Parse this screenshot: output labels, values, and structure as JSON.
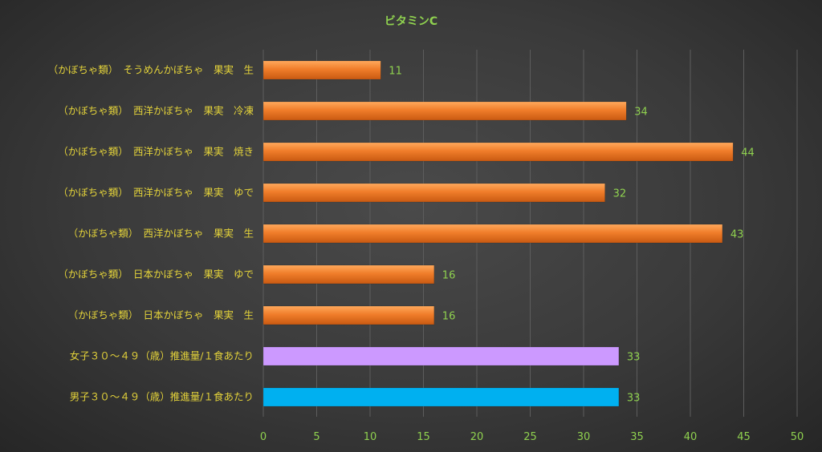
{
  "chart_data": {
    "type": "bar",
    "orientation": "horizontal",
    "title": "ビタミンC",
    "xlim": [
      0,
      50
    ],
    "xticks": [
      0,
      5,
      10,
      15,
      20,
      25,
      30,
      35,
      40,
      45,
      50
    ],
    "grid": true,
    "categories": [
      "（かぼちゃ類）　そうめんかぼちゃ　果実　生",
      "（かぼちゃ類）　西洋かぼちゃ　果実　冷凍",
      "（かぼちゃ類）　西洋かぼちゃ　果実　焼き",
      "（かぼちゃ類）　西洋かぼちゃ　果実　ゆで",
      "（かぼちゃ類）　西洋かぼちゃ　果実　生",
      "（かぼちゃ類）　日本かぼちゃ　果実　ゆで",
      "（かぼちゃ類）　日本かぼちゃ　果実　生",
      "女子３０～４９（歳）推進量/１食あたり",
      "男子３０～４９（歳）推進量/１食あたり"
    ],
    "values": [
      11,
      34,
      44,
      32,
      43,
      16,
      16,
      33.3,
      33.3
    ],
    "data_labels": [
      "11",
      "34",
      "44",
      "32",
      "43",
      "16",
      "16",
      "33",
      "33"
    ],
    "colors": [
      "#f07d2a",
      "#f07d2a",
      "#f07d2a",
      "#f07d2a",
      "#f07d2a",
      "#f07d2a",
      "#f07d2a",
      "#cc99ff",
      "#00b0f0"
    ]
  }
}
